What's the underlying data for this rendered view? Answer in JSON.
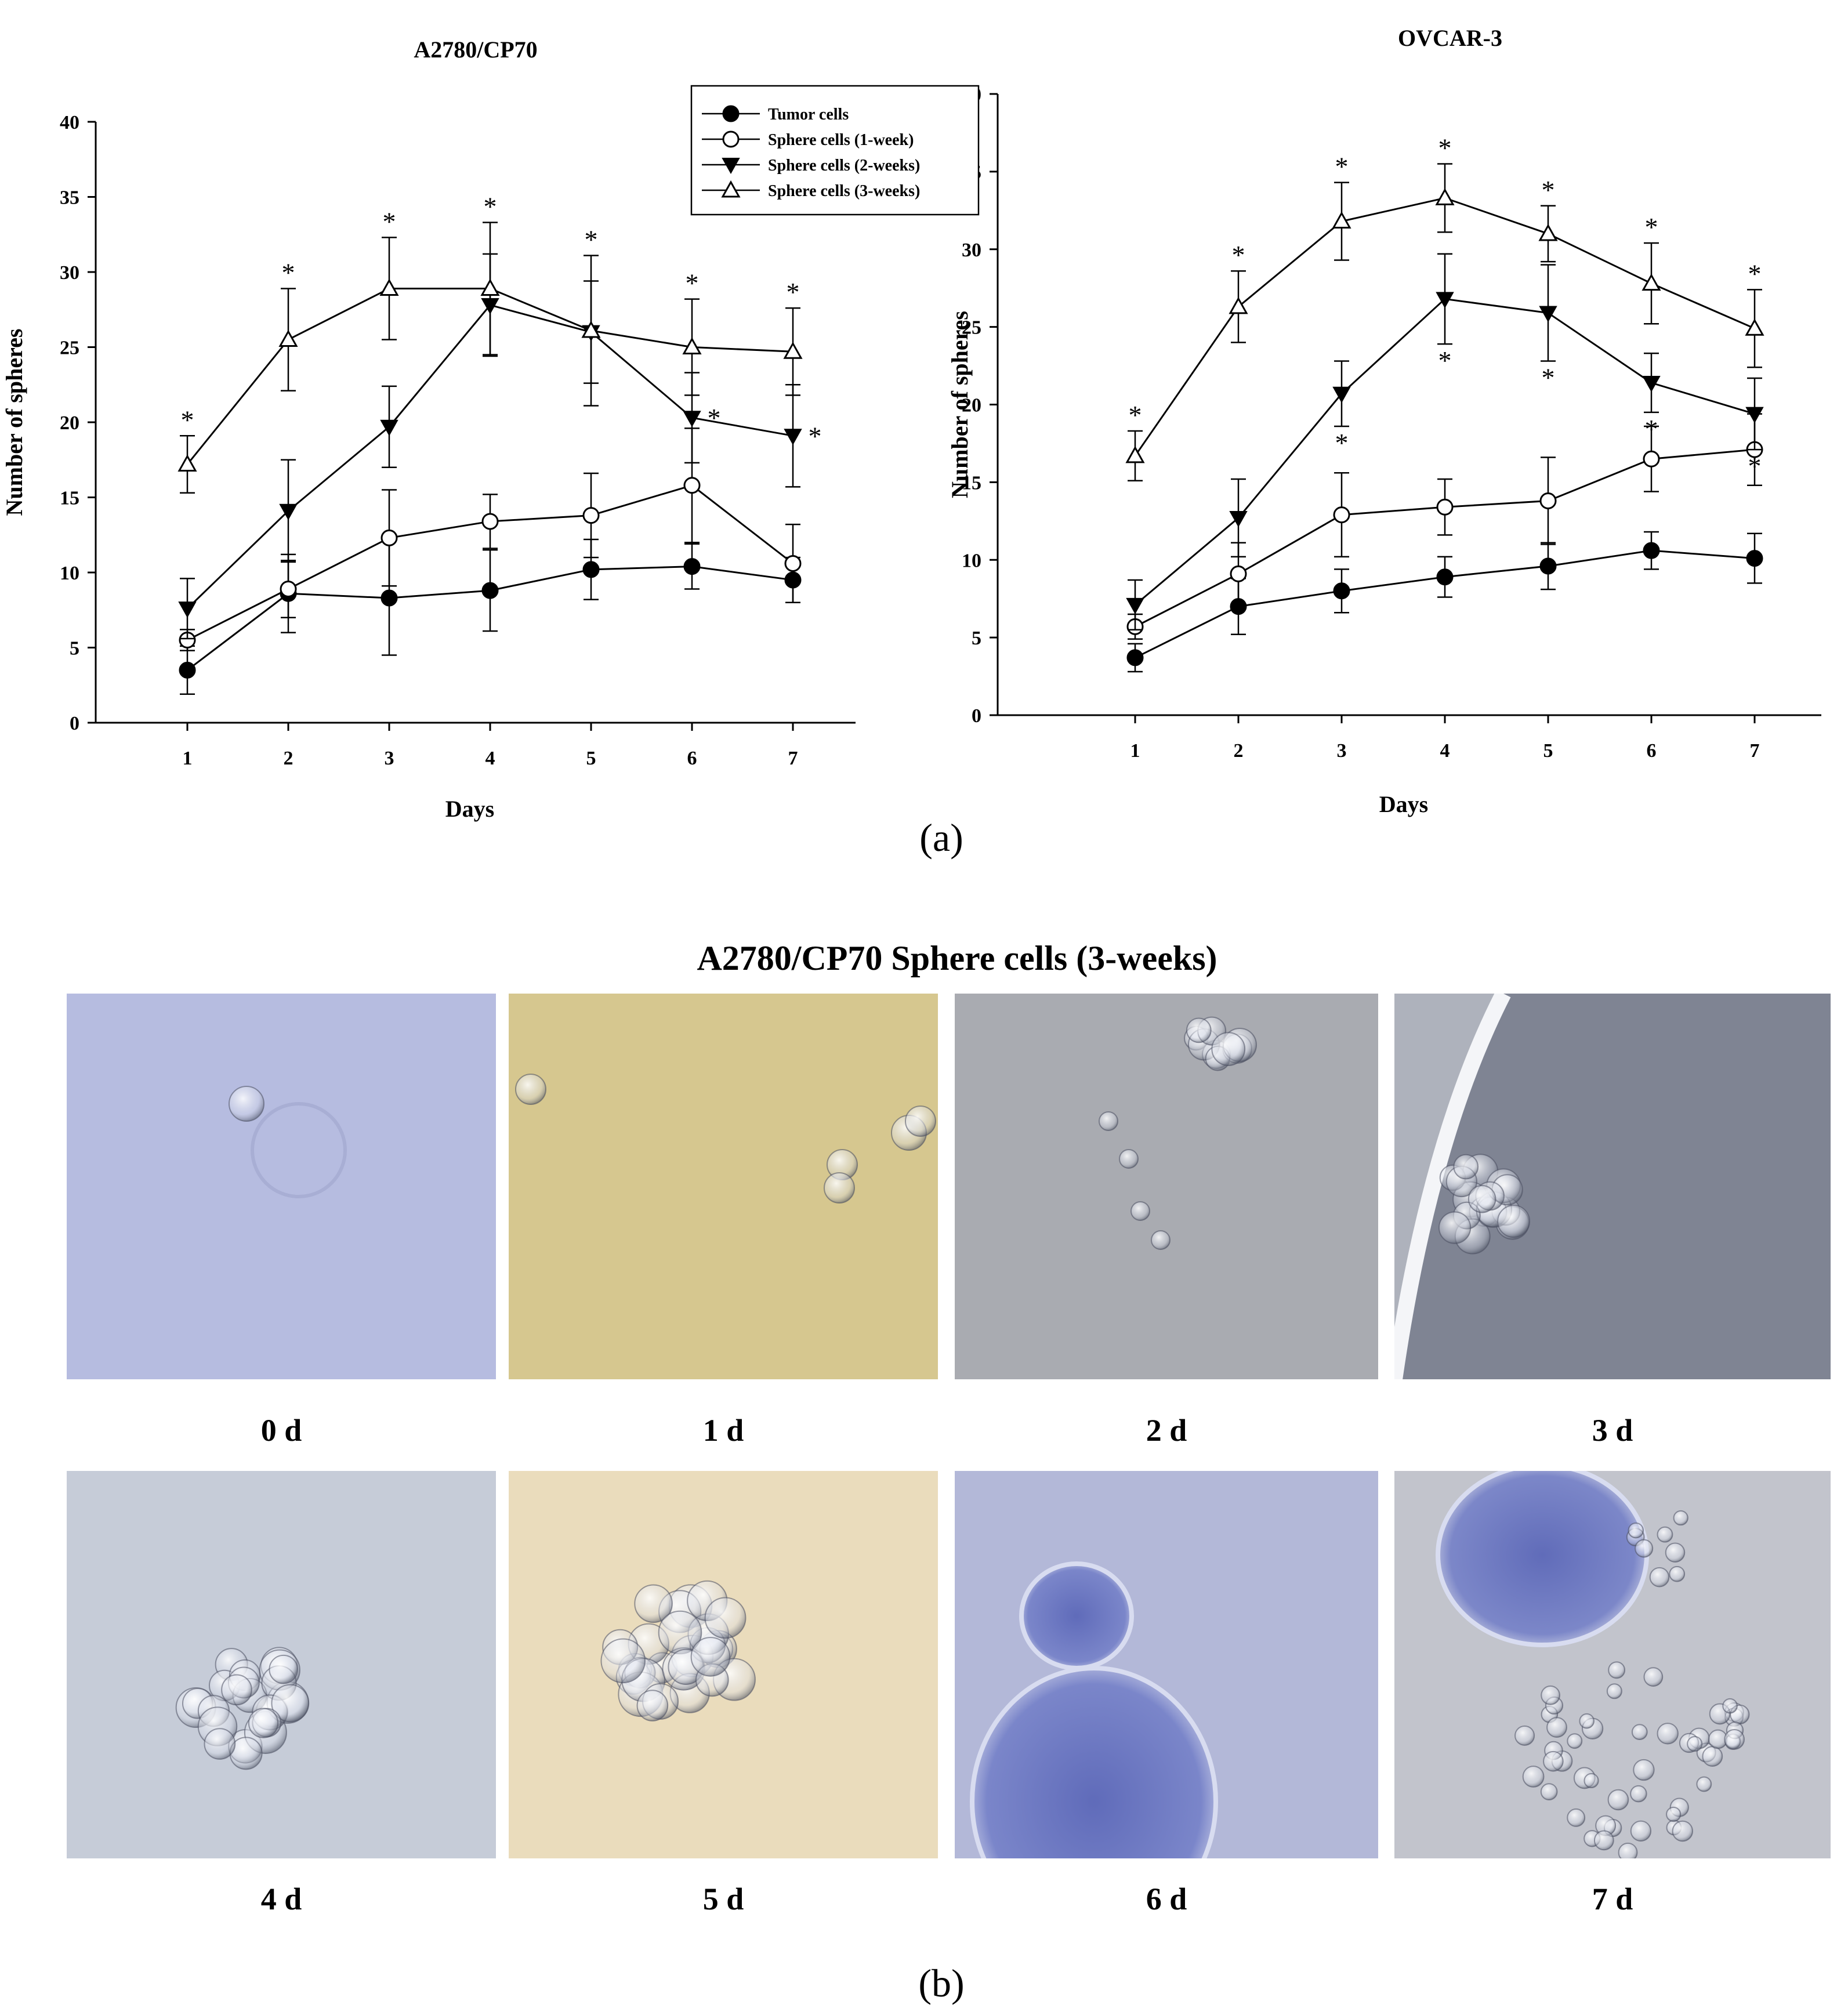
{
  "panel_a_label": "(a)",
  "panel_b_label": "(b)",
  "legend": {
    "entries": [
      "Tumor cells",
      "Sphere cells (1-week)",
      "Sphere cells (2-weeks)",
      "Sphere cells (3-weeks)"
    ],
    "markers": [
      "filled-circle",
      "open-circle",
      "filled-triangle-down",
      "open-triangle-up"
    ]
  },
  "chart_data": [
    {
      "type": "line",
      "title": "A2780/CP70",
      "xlabel": "Days",
      "ylabel": "Number of spheres",
      "x": [
        1,
        2,
        3,
        4,
        5,
        6,
        7
      ],
      "xticks": [
        "1",
        "2",
        "3",
        "4",
        "5",
        "6",
        "7"
      ],
      "ylim": [
        0,
        40
      ],
      "yticks": [
        "0",
        "5",
        "10",
        "15",
        "20",
        "25",
        "30",
        "35",
        "40"
      ],
      "grid": false,
      "legend_position": "top-right",
      "significance_marker": "*",
      "series": [
        {
          "name": "Tumor cells",
          "marker": "filled-circle",
          "values": [
            3.5,
            8.6,
            8.3,
            8.8,
            10.2,
            10.4,
            9.5
          ],
          "errors": [
            1.6,
            2.6,
            3.8,
            2.7,
            2.0,
            1.5,
            1.5
          ]
        },
        {
          "name": "Sphere cells (1-week)",
          "marker": "open-circle",
          "values": [
            5.5,
            8.9,
            12.3,
            13.4,
            13.8,
            15.8,
            10.6
          ],
          "errors": [
            0.7,
            1.9,
            3.2,
            1.8,
            2.8,
            3.8,
            2.6
          ]
        },
        {
          "name": "Sphere cells (2-weeks)",
          "marker": "filled-triangle-down",
          "values": [
            7.6,
            14.1,
            19.7,
            27.8,
            26.0,
            20.3,
            19.1
          ],
          "errors": [
            2.0,
            3.4,
            2.7,
            3.4,
            3.4,
            3.0,
            3.4
          ],
          "significant": [
            false,
            false,
            false,
            false,
            false,
            true,
            true
          ]
        },
        {
          "name": "Sphere cells (3-weeks)",
          "marker": "open-triangle-up",
          "values": [
            17.2,
            25.5,
            28.9,
            28.9,
            26.1,
            25.0,
            24.7
          ],
          "errors": [
            1.9,
            3.4,
            3.4,
            4.4,
            5.0,
            3.2,
            2.9
          ],
          "significant": [
            true,
            true,
            true,
            true,
            true,
            true,
            true
          ]
        }
      ]
    },
    {
      "type": "line",
      "title": "OVCAR-3",
      "xlabel": "Days",
      "ylabel": "Number of spheres",
      "x": [
        1,
        2,
        3,
        4,
        5,
        6,
        7
      ],
      "xticks": [
        "1",
        "2",
        "3",
        "4",
        "5",
        "6",
        "7"
      ],
      "ylim": [
        0,
        40
      ],
      "yticks": [
        "0",
        "5",
        "10",
        "15",
        "20",
        "25",
        "30",
        "35",
        "40"
      ],
      "grid": false,
      "significance_marker": "*",
      "series": [
        {
          "name": "Tumor cells",
          "marker": "filled-circle",
          "values": [
            3.7,
            7.0,
            8.0,
            8.9,
            9.6,
            10.6,
            10.1
          ],
          "errors": [
            0.9,
            1.8,
            1.4,
            1.3,
            1.5,
            1.2,
            1.6
          ]
        },
        {
          "name": "Sphere cells (1-week)",
          "marker": "open-circle",
          "values": [
            5.7,
            9.1,
            12.9,
            13.4,
            13.8,
            16.5,
            17.1
          ],
          "errors": [
            0.8,
            2.0,
            2.7,
            1.8,
            2.8,
            2.1,
            2.3
          ]
        },
        {
          "name": "Sphere cells (2-weeks)",
          "marker": "filled-triangle-down",
          "values": [
            7.1,
            12.7,
            20.7,
            26.8,
            25.9,
            21.4,
            19.4
          ],
          "errors": [
            1.6,
            2.5,
            2.1,
            2.9,
            3.1,
            1.9,
            2.3
          ],
          "significant": [
            false,
            false,
            true,
            true,
            true,
            true,
            true
          ]
        },
        {
          "name": "Sphere cells (3-weeks)",
          "marker": "open-triangle-up",
          "values": [
            16.7,
            26.3,
            31.8,
            33.3,
            31.0,
            27.8,
            24.9
          ],
          "errors": [
            1.6,
            2.3,
            2.5,
            2.2,
            1.8,
            2.6,
            2.5
          ],
          "significant": [
            true,
            true,
            true,
            true,
            true,
            true,
            true
          ]
        }
      ]
    }
  ],
  "panel_b": {
    "title": "A2780/CP70 Sphere cells (3-weeks)",
    "images": [
      {
        "label": "0 d",
        "bg": "#b6bce0"
      },
      {
        "label": "1 d",
        "bg": "#d6c78f"
      },
      {
        "label": "2 d",
        "bg": "#a9abb1"
      },
      {
        "label": "3 d",
        "bg": "#7f8493"
      },
      {
        "label": "4 d",
        "bg": "#c6ccd8"
      },
      {
        "label": "5 d",
        "bg": "#eadcbc"
      },
      {
        "label": "6 d",
        "bg": "#b3b8d8"
      },
      {
        "label": "7 d",
        "bg": "#c2c4cc"
      }
    ]
  }
}
